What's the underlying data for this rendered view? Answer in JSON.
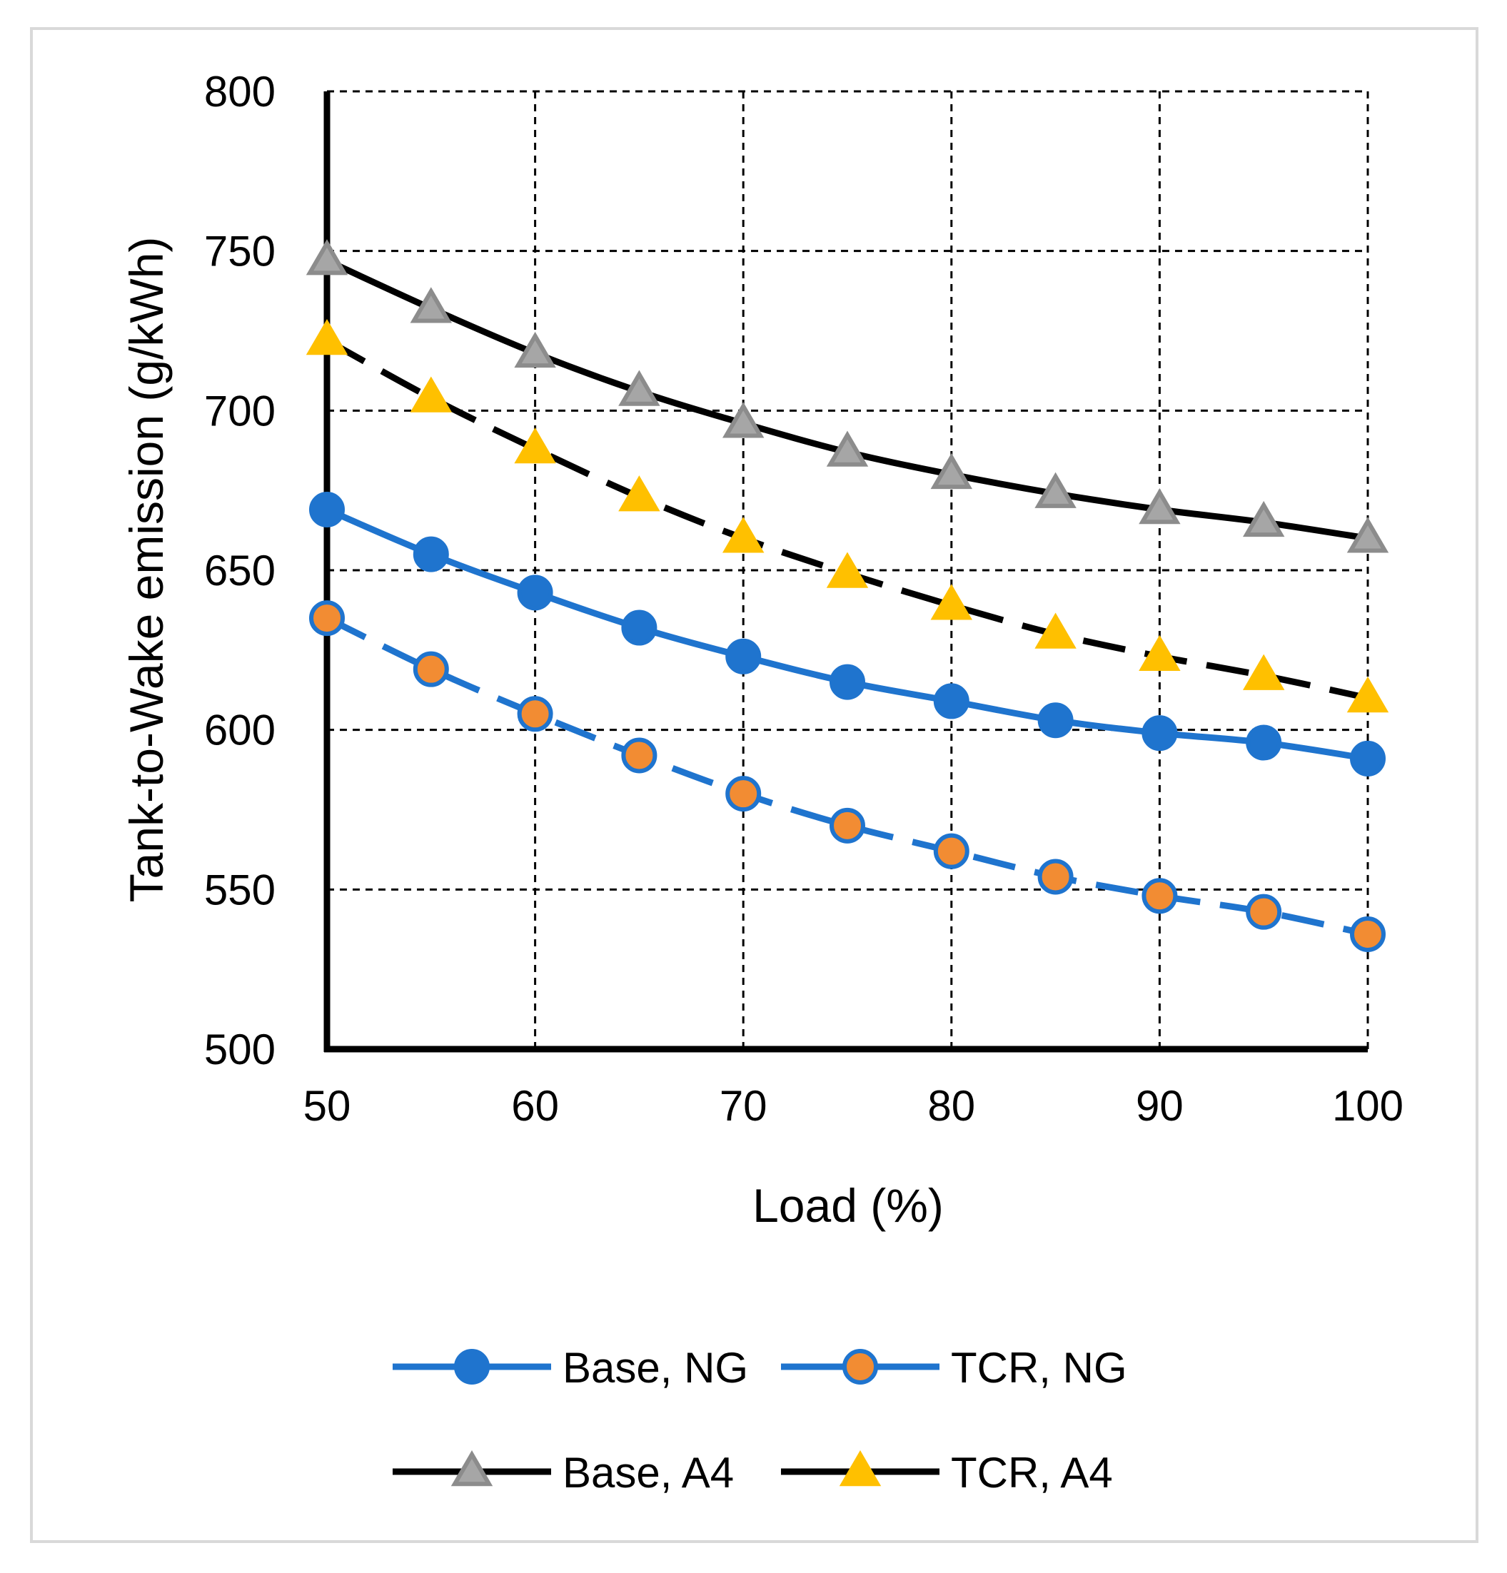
{
  "chart_data": {
    "type": "line",
    "title": "",
    "xlabel": "Load (%)",
    "ylabel": "Tank-to-Wake emission (g/kWh)",
    "xlim": [
      50,
      100
    ],
    "ylim": [
      500,
      800
    ],
    "xticks": [
      50,
      60,
      70,
      80,
      90,
      100
    ],
    "yticks": [
      500,
      550,
      600,
      650,
      700,
      750,
      800
    ],
    "grid": true,
    "grid_style": "dashed",
    "legend_position": "bottom",
    "x": [
      50,
      55,
      60,
      65,
      70,
      75,
      80,
      85,
      90,
      95,
      100
    ],
    "series": [
      {
        "name": "Base, NG",
        "values": [
          669,
          655,
          643,
          632,
          623,
          615,
          609,
          603,
          599,
          596,
          591
        ],
        "line_color": "#1F74CE",
        "line_style": "solid",
        "marker": "circle",
        "marker_fill": "#1F74CE",
        "marker_edge": "#1F74CE"
      },
      {
        "name": "TCR, NG",
        "values": [
          635,
          619,
          605,
          592,
          580,
          570,
          562,
          554,
          548,
          543,
          536
        ],
        "line_color": "#1F74CE",
        "line_style": "dashed",
        "marker": "circle",
        "marker_fill": "#F28C33",
        "marker_edge": "#1F74CE"
      },
      {
        "name": "Base, A4",
        "values": [
          747,
          732,
          718,
          706,
          696,
          687,
          680,
          674,
          669,
          665,
          660
        ],
        "line_color": "#000000",
        "line_style": "solid",
        "marker": "triangle",
        "marker_fill": "#A6A6A6",
        "marker_edge": "#8C8C8C"
      },
      {
        "name": "TCR, A4",
        "values": [
          722,
          704,
          688,
          673,
          660,
          649,
          639,
          630,
          623,
          617,
          610
        ],
        "line_color": "#000000",
        "line_style": "dashed",
        "marker": "triangle",
        "marker_fill": "#FFC000",
        "marker_edge": "#FFC000"
      }
    ]
  },
  "colors": {
    "frame_border": "#D9D9D9",
    "grid": "#000000",
    "axis": "#000000",
    "text": "#000000"
  }
}
